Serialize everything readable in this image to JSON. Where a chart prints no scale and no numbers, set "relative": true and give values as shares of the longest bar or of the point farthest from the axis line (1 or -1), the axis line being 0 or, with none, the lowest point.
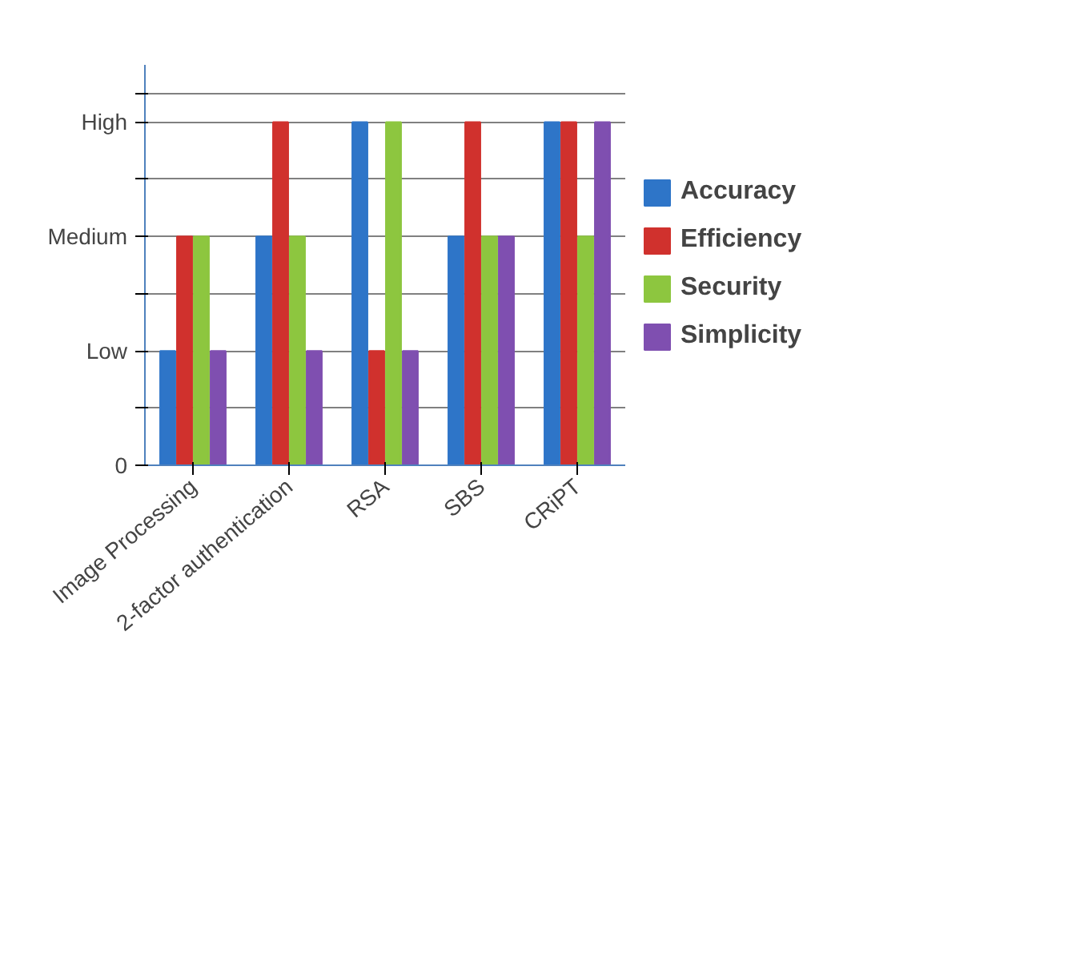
{
  "chart_data": {
    "type": "bar",
    "categories": [
      "Image Processing",
      "2-factor authentication",
      "RSA",
      "SBS",
      "CRiPT"
    ],
    "series": [
      {
        "name": "Accuracy",
        "color": "#2e75c8",
        "values": [
          0.333,
          0.667,
          1,
          0.667,
          1
        ]
      },
      {
        "name": "Efficiency",
        "color": "#d0312d",
        "values": [
          0.667,
          1,
          0.333,
          1,
          1
        ]
      },
      {
        "name": "Security",
        "color": "#8dc63f",
        "values": [
          0.667,
          0.667,
          1,
          0.667,
          0.667
        ]
      },
      {
        "name": "Simplicity",
        "color": "#7f4fb0",
        "values": [
          0.333,
          0.333,
          0.333,
          0.667,
          1
        ]
      }
    ],
    "relative": true,
    "annotations": [
      "0",
      "Low",
      "Medium",
      "High"
    ],
    "grid": "y",
    "legend": "right"
  }
}
